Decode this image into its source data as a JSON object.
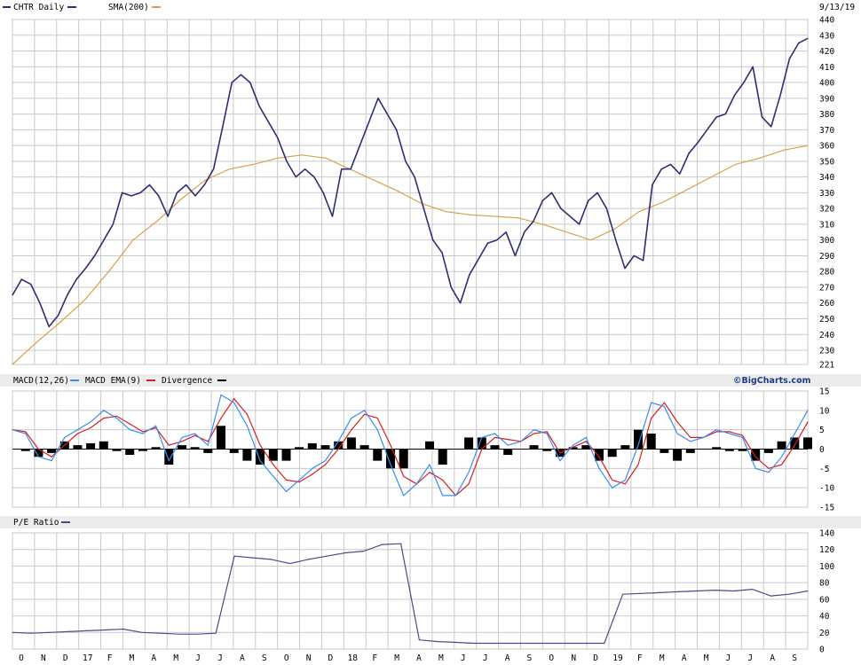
{
  "header": {
    "date": "9/13/19",
    "brand": "©BigCharts.com"
  },
  "colors": {
    "price": "#2e2f73",
    "sma": "#d7a24b",
    "macd": "#3a8df0",
    "macd_ema": "#d62020",
    "divergence": "#000000",
    "grid": "#c9c9c9",
    "band": "#ececec",
    "pe": "#4a4c8a"
  },
  "legends": {
    "main": [
      {
        "label": "CHTR Daily",
        "color": "#2e2f73"
      },
      {
        "label": "SMA(200)",
        "color": "#d7a24b"
      }
    ],
    "macd": [
      {
        "label": "MACD(12,26)",
        "color": "#3a8df0"
      },
      {
        "label": "MACD EMA(9)",
        "color": "#d62020"
      },
      {
        "label": "Divergence",
        "color": "#000000"
      }
    ],
    "pe": [
      {
        "label": "P/E Ratio",
        "color": "#4a4c8a"
      }
    ]
  },
  "x_axis": {
    "labels": [
      "O",
      "N",
      "D",
      "17",
      "F",
      "M",
      "A",
      "M",
      "J",
      "J",
      "A",
      "S",
      "O",
      "N",
      "D",
      "18",
      "F",
      "M",
      "A",
      "M",
      "J",
      "J",
      "A",
      "S",
      "O",
      "N",
      "D",
      "19",
      "F",
      "M",
      "A",
      "M",
      "J",
      "J",
      "A",
      "S"
    ]
  },
  "chart_data": [
    {
      "type": "line",
      "title": "CHTR Daily",
      "ylim": [
        221,
        440
      ],
      "yticks": [
        221,
        230,
        240,
        250,
        260,
        270,
        280,
        290,
        300,
        310,
        320,
        330,
        340,
        350,
        360,
        370,
        380,
        390,
        400,
        410,
        420,
        430,
        440
      ],
      "series": [
        {
          "name": "CHTR Daily",
          "values": [
            265,
            275,
            272,
            260,
            245,
            252,
            265,
            275,
            282,
            290,
            300,
            310,
            330,
            328,
            330,
            335,
            328,
            315,
            330,
            335,
            328,
            335,
            345,
            372,
            400,
            405,
            400,
            385,
            375,
            365,
            350,
            340,
            345,
            340,
            330,
            315,
            345,
            345,
            360,
            375,
            390,
            380,
            370,
            350,
            340,
            320,
            300,
            292,
            270,
            260,
            278,
            288,
            298,
            300,
            305,
            290,
            305,
            312,
            325,
            330,
            320,
            315,
            310,
            325,
            330,
            320,
            300,
            282,
            290,
            287,
            335,
            345,
            348,
            342,
            355,
            362,
            370,
            378,
            380,
            392,
            400,
            410,
            378,
            372,
            392,
            415,
            425,
            428
          ]
        },
        {
          "name": "SMA(200)",
          "values": [
            221,
            235,
            248,
            262,
            280,
            300,
            312,
            326,
            338,
            345,
            348,
            352,
            354,
            352,
            345,
            338,
            331,
            323,
            318,
            316,
            315,
            314,
            310,
            305,
            300,
            307,
            318,
            324,
            332,
            340,
            348,
            352,
            357,
            360
          ]
        }
      ]
    },
    {
      "type": "line",
      "title": "MACD(12,26)",
      "ylim": [
        -15,
        15
      ],
      "yticks": [
        -15,
        -10,
        -5,
        0,
        5,
        10,
        15
      ],
      "series": [
        {
          "name": "MACD(12,26)",
          "values": [
            5,
            4,
            -2,
            -3,
            3,
            5,
            7,
            10,
            8,
            5,
            4,
            6,
            -3,
            3,
            4,
            1,
            14,
            12,
            6,
            -3,
            -7,
            -11,
            -8,
            -5,
            -3,
            2,
            8,
            10,
            5,
            -4,
            -12,
            -9,
            -4,
            -12,
            -12,
            -6,
            3,
            4,
            1,
            2,
            5,
            4,
            -3,
            1,
            3,
            -5,
            -10,
            -8,
            1,
            12,
            11,
            4,
            2,
            3,
            5,
            4,
            3,
            -5,
            -6,
            -2,
            4,
            10
          ]
        },
        {
          "name": "MACD EMA(9)",
          "values": [
            5,
            4.5,
            0,
            -2,
            1,
            4,
            5.5,
            8,
            8.5,
            6.5,
            4.5,
            5.5,
            1,
            2,
            3.5,
            2,
            8,
            13,
            9,
            1,
            -4,
            -8,
            -8.5,
            -6.5,
            -4,
            0,
            5,
            9,
            8,
            1,
            -7,
            -9,
            -6,
            -8,
            -12,
            -9,
            0,
            3,
            2.5,
            2,
            4,
            4.5,
            -1,
            0.5,
            2,
            -2,
            -8,
            -9,
            -4,
            8,
            12,
            7,
            3,
            3,
            4.5,
            4.5,
            3.5,
            -2,
            -5,
            -4,
            1,
            7
          ]
        },
        {
          "name": "Divergence",
          "values": [
            0,
            -0.5,
            -2,
            -1,
            2,
            1,
            1.5,
            2,
            -0.5,
            -1.5,
            -0.5,
            0.5,
            -4,
            1,
            0.5,
            -1,
            6,
            -1,
            -3,
            -4,
            -3,
            -3,
            0.5,
            1.5,
            1,
            2,
            3,
            1,
            -3,
            -5,
            -5,
            0,
            2,
            -4,
            0,
            3,
            3,
            1,
            -1.5,
            0,
            1,
            -0.5,
            -2,
            0.5,
            1,
            -3,
            -2,
            1,
            5,
            4,
            -1,
            -3,
            -1,
            0,
            0.5,
            -0.5,
            -0.5,
            -3,
            -1,
            2,
            3,
            3
          ]
        }
      ]
    },
    {
      "type": "line",
      "title": "P/E Ratio",
      "ylim": [
        0,
        140
      ],
      "yticks": [
        0,
        20,
        40,
        60,
        80,
        100,
        120,
        140
      ],
      "series": [
        {
          "name": "P/E Ratio",
          "values": [
            20,
            19,
            20,
            21,
            22,
            23,
            24,
            20,
            19,
            18,
            18,
            19,
            112,
            110,
            108,
            103,
            108,
            112,
            116,
            118,
            126,
            127,
            11,
            9,
            8,
            7,
            7,
            7,
            7,
            7,
            7,
            7,
            7,
            66,
            67,
            68,
            69,
            70,
            71,
            70,
            72,
            64,
            66,
            70
          ]
        }
      ]
    }
  ]
}
